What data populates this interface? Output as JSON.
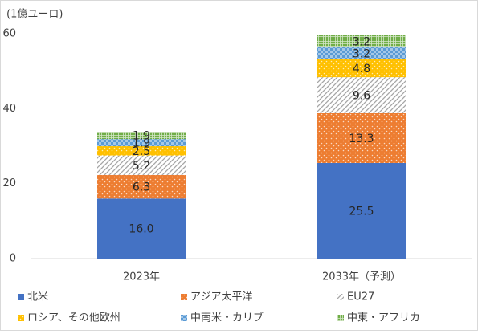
{
  "chart_data": {
    "type": "stacked_bar",
    "unit_label": "(1億ユーロ)",
    "categories": [
      "2023年",
      "2033年（予測）"
    ],
    "series": [
      {
        "name": "北米",
        "color": "#4472c4",
        "values": [
          16.0,
          25.5
        ],
        "value_labels": [
          "16.0",
          "25.5"
        ]
      },
      {
        "name": "アジア太平洋",
        "color": "#ed7d31",
        "values": [
          6.3,
          13.3
        ]
      },
      {
        "name": "EU27",
        "color": "#a5a5a5",
        "values": [
          5.2,
          9.6
        ]
      },
      {
        "name": "ロシア、その他欧州",
        "color": "#ffc000",
        "values": [
          2.5,
          4.8
        ]
      },
      {
        "name": "中南米・カリブ",
        "color": "#5b9bd5",
        "values": [
          1.9,
          3.2
        ]
      },
      {
        "name": "中東・アフリカ",
        "color": "#70ad47",
        "values": [
          1.9,
          3.2
        ]
      }
    ],
    "ylim": [
      0,
      60
    ],
    "yticks": [
      0,
      20,
      40,
      60
    ],
    "grid": false,
    "legend": "bottom"
  }
}
